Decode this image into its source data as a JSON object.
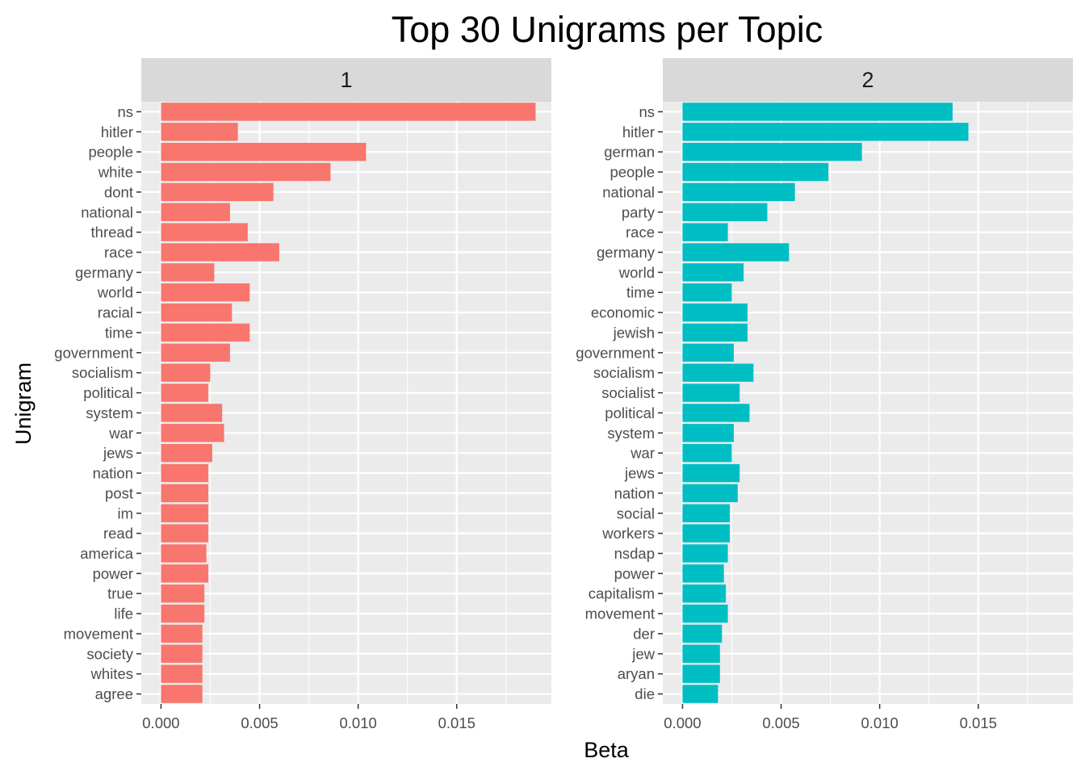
{
  "chart_data": {
    "type": "bar",
    "orientation": "horizontal",
    "title": "Top 30 Unigrams per Topic",
    "xlabel": "Beta",
    "ylabel": "Unigram",
    "xlim": [
      -0.001,
      0.0198
    ],
    "xticks": [
      0.0,
      0.005,
      0.01,
      0.015
    ],
    "xtick_labels": [
      "0.000",
      "0.005",
      "0.010",
      "0.015"
    ],
    "grid": true,
    "legend": "none",
    "panels": [
      {
        "strip": "1",
        "color": "#F8766D",
        "categories": [
          "ns",
          "hitler",
          "people",
          "white",
          "dont",
          "national",
          "thread",
          "race",
          "germany",
          "world",
          "racial",
          "time",
          "government",
          "socialism",
          "political",
          "system",
          "war",
          "jews",
          "nation",
          "post",
          "im",
          "read",
          "america",
          "power",
          "true",
          "life",
          "movement",
          "society",
          "whites",
          "agree"
        ],
        "values": [
          0.019,
          0.0039,
          0.0104,
          0.0086,
          0.0057,
          0.0035,
          0.0044,
          0.006,
          0.0027,
          0.0045,
          0.0036,
          0.0045,
          0.0035,
          0.0025,
          0.0024,
          0.0031,
          0.0032,
          0.0026,
          0.0024,
          0.0024,
          0.0024,
          0.0024,
          0.0023,
          0.0024,
          0.0022,
          0.0022,
          0.0021,
          0.0021,
          0.0021,
          0.0021
        ]
      },
      {
        "strip": "2",
        "color": "#00BFC4",
        "categories": [
          "ns",
          "hitler",
          "german",
          "people",
          "national",
          "party",
          "race",
          "germany",
          "world",
          "time",
          "economic",
          "jewish",
          "government",
          "socialism",
          "socialist",
          "political",
          "system",
          "war",
          "jews",
          "nation",
          "social",
          "workers",
          "nsdap",
          "power",
          "capitalism",
          "movement",
          "der",
          "jew",
          "aryan",
          "die"
        ],
        "values": [
          0.0137,
          0.0145,
          0.0091,
          0.0074,
          0.0057,
          0.0043,
          0.0023,
          0.0054,
          0.0031,
          0.0025,
          0.0033,
          0.0033,
          0.0026,
          0.0036,
          0.0029,
          0.0034,
          0.0026,
          0.0025,
          0.0029,
          0.0028,
          0.0024,
          0.0024,
          0.0023,
          0.0021,
          0.0022,
          0.0023,
          0.002,
          0.0019,
          0.0019,
          0.0018
        ]
      }
    ]
  }
}
